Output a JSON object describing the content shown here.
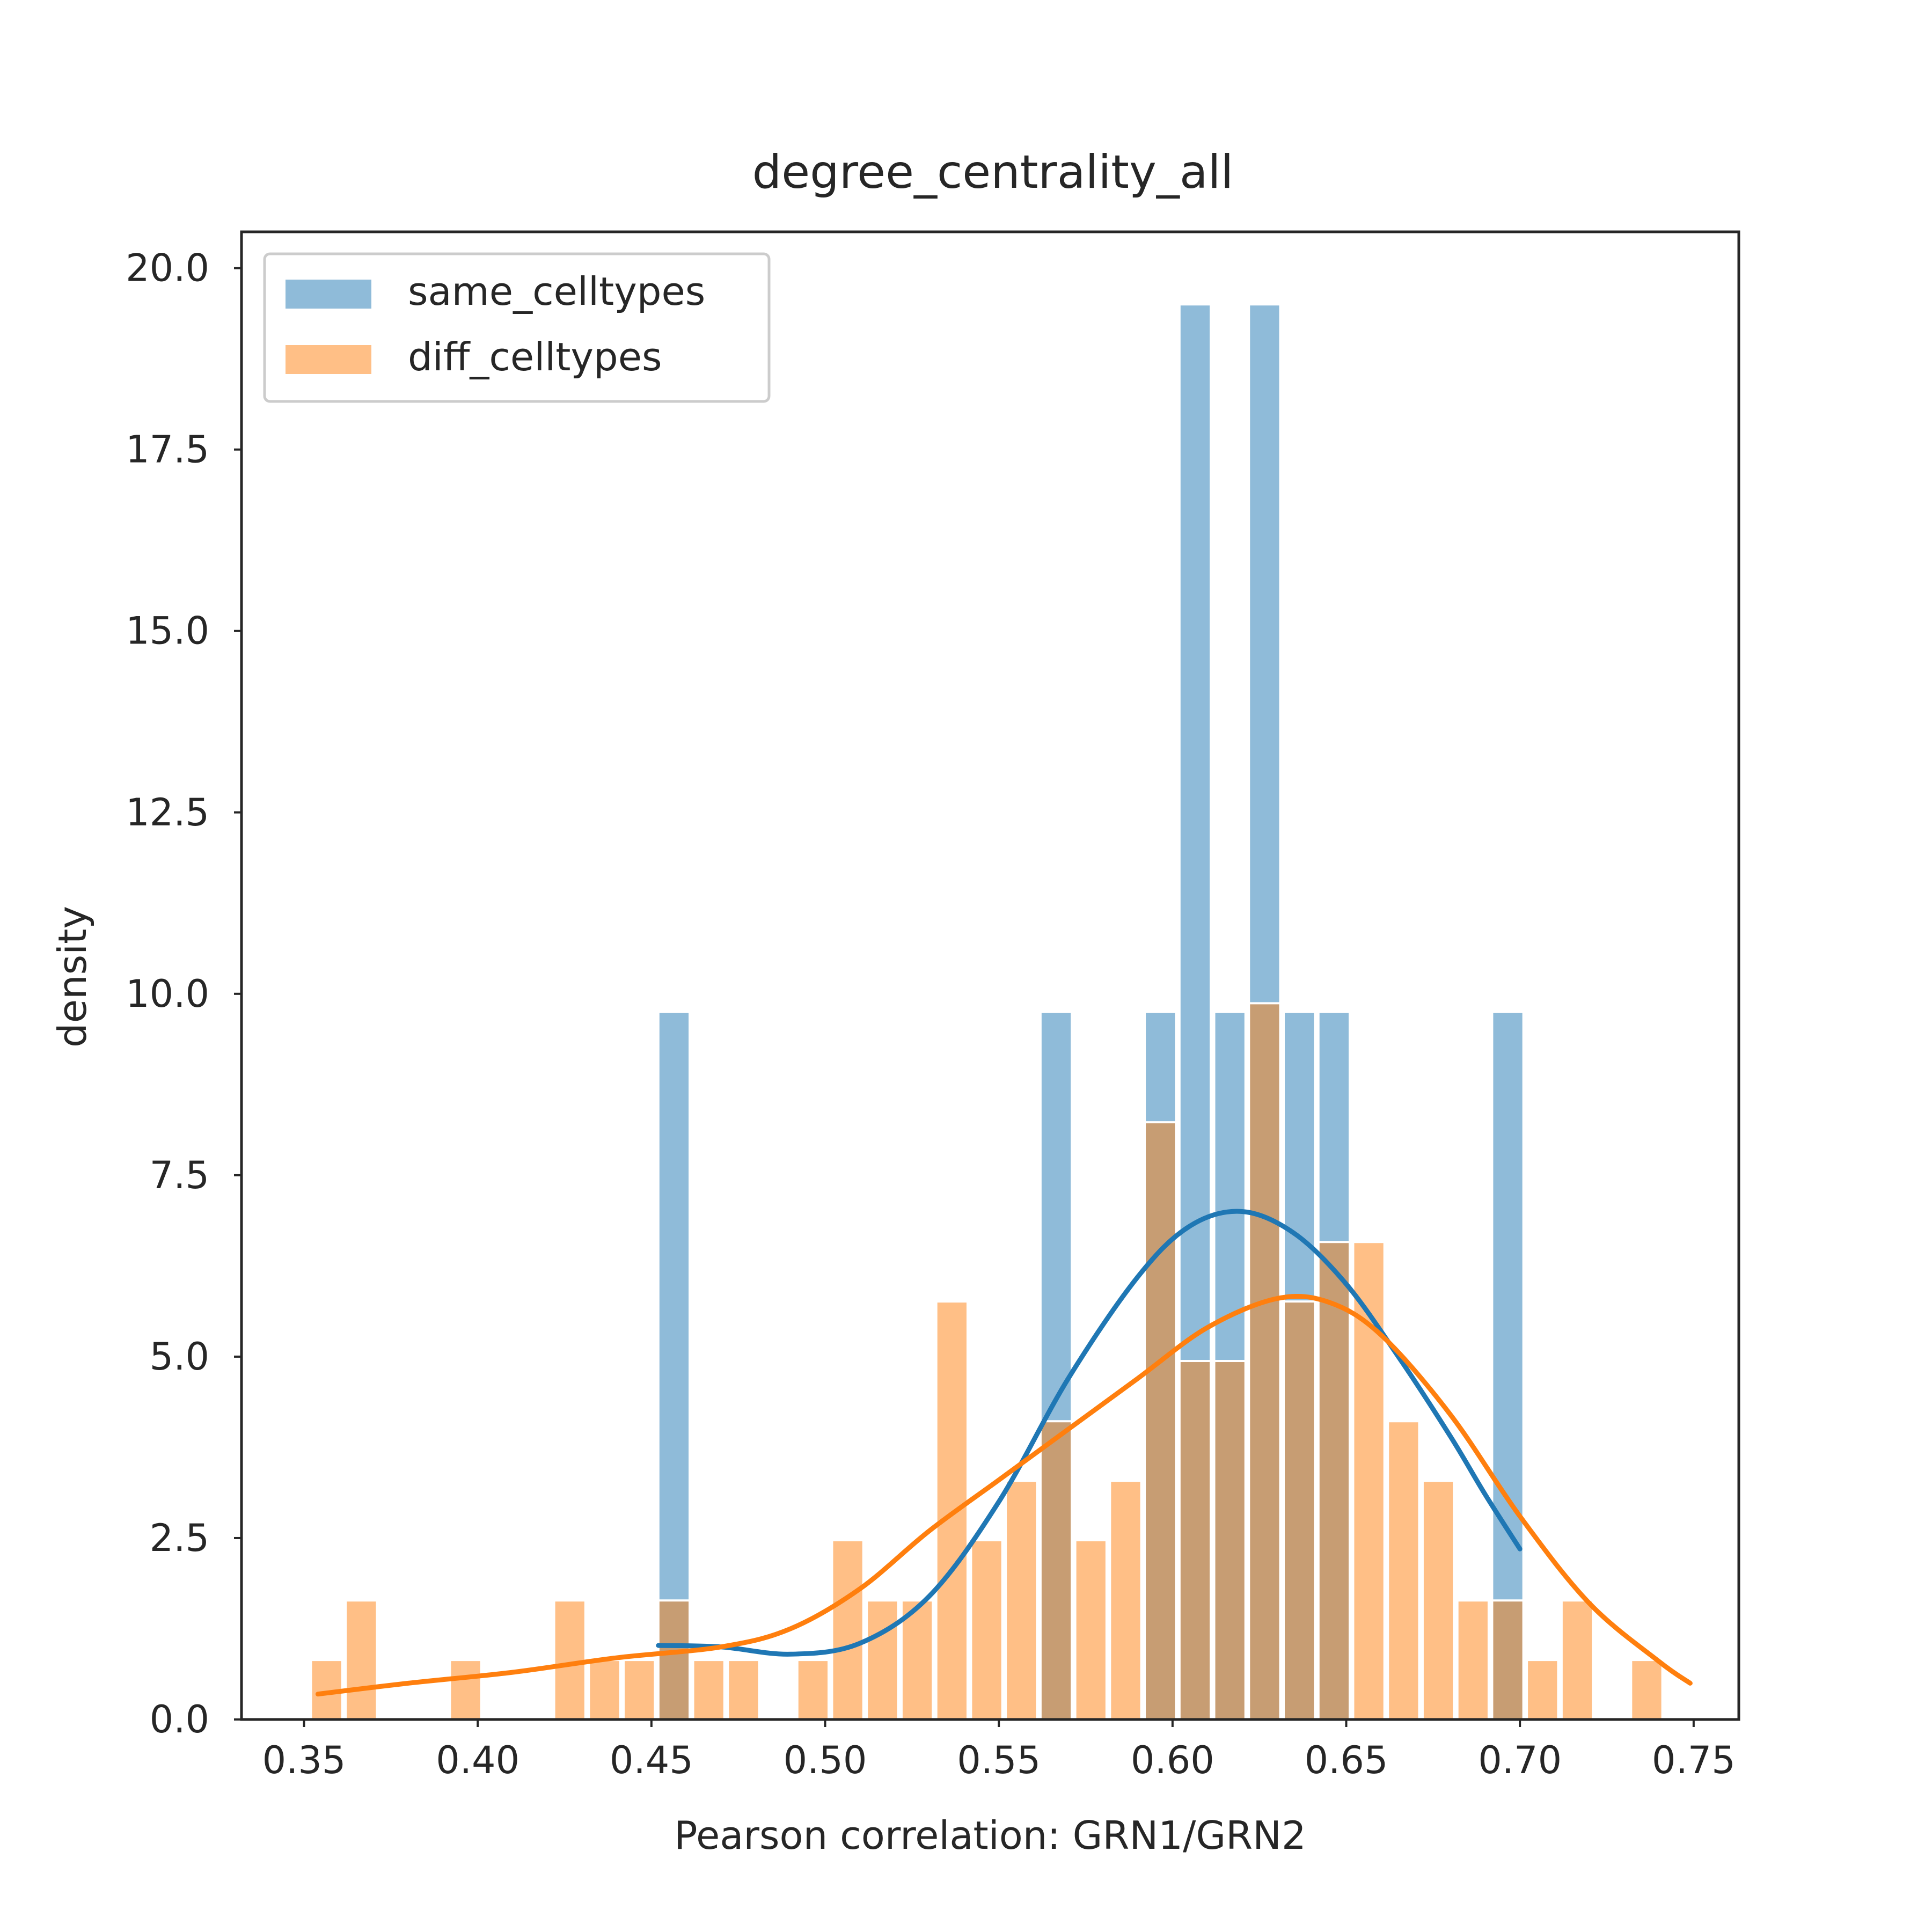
{
  "chart_data": {
    "type": "bar",
    "title": "degree_centrality_all",
    "xlabel": "Pearson correlation: GRN1/GRN2",
    "ylabel": "density",
    "xlim": [
      0.332,
      0.763
    ],
    "ylim": [
      0,
      20.5
    ],
    "xticks": [
      "0.35",
      "0.40",
      "0.45",
      "0.50",
      "0.55",
      "0.60",
      "0.65",
      "0.70",
      "0.75"
    ],
    "yticks": [
      "0.0",
      "2.5",
      "5.0",
      "7.5",
      "10.0",
      "12.5",
      "15.0",
      "17.5",
      "20.0"
    ],
    "grid": false,
    "legend_position": "top-left",
    "series": [
      {
        "name": "same_celltypes",
        "color": "#1f77b4",
        "bins": [
          {
            "x0": 0.452,
            "x1": 0.461,
            "y": 9.75
          },
          {
            "x0": 0.562,
            "x1": 0.571,
            "y": 9.75
          },
          {
            "x0": 0.592,
            "x1": 0.601,
            "y": 9.75
          },
          {
            "x0": 0.602,
            "x1": 0.611,
            "y": 19.5
          },
          {
            "x0": 0.612,
            "x1": 0.621,
            "y": 9.75
          },
          {
            "x0": 0.622,
            "x1": 0.631,
            "y": 19.5
          },
          {
            "x0": 0.632,
            "x1": 0.641,
            "y": 9.75
          },
          {
            "x0": 0.642,
            "x1": 0.651,
            "y": 9.75
          },
          {
            "x0": 0.692,
            "x1": 0.701,
            "y": 9.75
          }
        ],
        "kde": [
          [
            0.452,
            1.02
          ],
          [
            0.47,
            1.0
          ],
          [
            0.49,
            0.9
          ],
          [
            0.51,
            1.05
          ],
          [
            0.53,
            1.7
          ],
          [
            0.55,
            3.0
          ],
          [
            0.57,
            4.7
          ],
          [
            0.59,
            6.1
          ],
          [
            0.605,
            6.8
          ],
          [
            0.62,
            7.0
          ],
          [
            0.635,
            6.7
          ],
          [
            0.65,
            6.0
          ],
          [
            0.665,
            5.0
          ],
          [
            0.68,
            3.9
          ],
          [
            0.69,
            3.1
          ],
          [
            0.7,
            2.35
          ]
        ]
      },
      {
        "name": "diff_celltypes",
        "color": "#ff7f0e",
        "bins": [
          {
            "x0": 0.352,
            "x1": 0.361,
            "y": 0.82
          },
          {
            "x0": 0.362,
            "x1": 0.371,
            "y": 1.64
          },
          {
            "x0": 0.392,
            "x1": 0.401,
            "y": 0.82
          },
          {
            "x0": 0.422,
            "x1": 0.431,
            "y": 1.64
          },
          {
            "x0": 0.432,
            "x1": 0.441,
            "y": 0.82
          },
          {
            "x0": 0.442,
            "x1": 0.451,
            "y": 0.82
          },
          {
            "x0": 0.452,
            "x1": 0.461,
            "y": 1.64
          },
          {
            "x0": 0.462,
            "x1": 0.471,
            "y": 0.82
          },
          {
            "x0": 0.472,
            "x1": 0.481,
            "y": 0.82
          },
          {
            "x0": 0.492,
            "x1": 0.501,
            "y": 0.82
          },
          {
            "x0": 0.502,
            "x1": 0.511,
            "y": 2.47
          },
          {
            "x0": 0.512,
            "x1": 0.521,
            "y": 1.64
          },
          {
            "x0": 0.522,
            "x1": 0.531,
            "y": 1.64
          },
          {
            "x0": 0.532,
            "x1": 0.541,
            "y": 5.76
          },
          {
            "x0": 0.542,
            "x1": 0.551,
            "y": 2.47
          },
          {
            "x0": 0.552,
            "x1": 0.561,
            "y": 3.29
          },
          {
            "x0": 0.562,
            "x1": 0.571,
            "y": 4.11
          },
          {
            "x0": 0.572,
            "x1": 0.581,
            "y": 2.47
          },
          {
            "x0": 0.582,
            "x1": 0.591,
            "y": 3.29
          },
          {
            "x0": 0.592,
            "x1": 0.601,
            "y": 8.23
          },
          {
            "x0": 0.602,
            "x1": 0.611,
            "y": 4.94
          },
          {
            "x0": 0.612,
            "x1": 0.621,
            "y": 4.94
          },
          {
            "x0": 0.622,
            "x1": 0.631,
            "y": 9.87
          },
          {
            "x0": 0.632,
            "x1": 0.641,
            "y": 5.76
          },
          {
            "x0": 0.642,
            "x1": 0.651,
            "y": 6.58
          },
          {
            "x0": 0.652,
            "x1": 0.661,
            "y": 6.58
          },
          {
            "x0": 0.662,
            "x1": 0.671,
            "y": 4.11
          },
          {
            "x0": 0.672,
            "x1": 0.681,
            "y": 3.29
          },
          {
            "x0": 0.682,
            "x1": 0.691,
            "y": 1.64
          },
          {
            "x0": 0.692,
            "x1": 0.701,
            "y": 1.64
          },
          {
            "x0": 0.702,
            "x1": 0.711,
            "y": 0.82
          },
          {
            "x0": 0.712,
            "x1": 0.721,
            "y": 1.64
          },
          {
            "x0": 0.732,
            "x1": 0.741,
            "y": 0.82
          }
        ],
        "kde": [
          [
            0.354,
            0.35
          ],
          [
            0.38,
            0.5
          ],
          [
            0.41,
            0.65
          ],
          [
            0.44,
            0.85
          ],
          [
            0.47,
            1.0
          ],
          [
            0.49,
            1.25
          ],
          [
            0.51,
            1.8
          ],
          [
            0.53,
            2.6
          ],
          [
            0.55,
            3.3
          ],
          [
            0.57,
            4.0
          ],
          [
            0.59,
            4.7
          ],
          [
            0.61,
            5.4
          ],
          [
            0.63,
            5.8
          ],
          [
            0.645,
            5.75
          ],
          [
            0.66,
            5.3
          ],
          [
            0.68,
            4.2
          ],
          [
            0.7,
            2.8
          ],
          [
            0.72,
            1.6
          ],
          [
            0.74,
            0.8
          ],
          [
            0.749,
            0.5
          ]
        ]
      }
    ]
  }
}
